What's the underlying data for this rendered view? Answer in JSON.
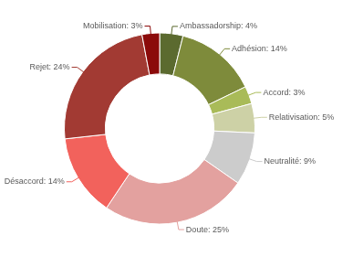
{
  "chart_data": {
    "type": "doughnut",
    "categories": [
      "Ambassadorship",
      "Adhésion",
      "Accord",
      "Relativisation",
      "Neutralité",
      "Doute",
      "Désaccord",
      "Rejet",
      "Mobilisation"
    ],
    "values": [
      4,
      14,
      3,
      5,
      9,
      25,
      14,
      24,
      3
    ],
    "value_labels": [
      "Ambassadorship: 4%",
      "Adhésion: 14%",
      "Accord: 3%",
      "Relativisation: 5%",
      "Neutralité: 9%",
      "Doute: 25%",
      "Désaccord: 14%",
      "Rejet: 24%",
      "Mobilisation: 3%"
    ],
    "colors": [
      "#5b6a2f",
      "#7e8b3b",
      "#a9bb58",
      "#cdd1a6",
      "#cccccc",
      "#e3a19f",
      "#f2625c",
      "#a23a33",
      "#8b0a0a"
    ],
    "data_labels": true
  }
}
